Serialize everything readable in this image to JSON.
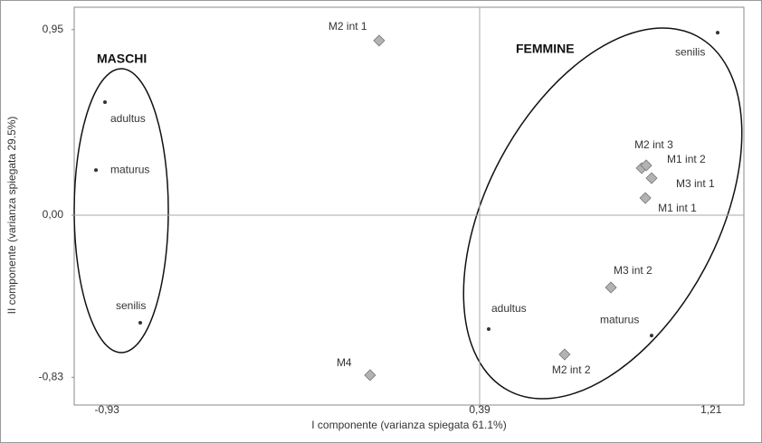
{
  "chart_data": {
    "type": "scatter",
    "x_label": "I componente (varianza spiegata 61.1%)",
    "y_label": "II componente (varianza spiegata 29.5%)",
    "xlim": [
      -1.046,
      1.326
    ],
    "ylim": [
      -0.972,
      1.065
    ],
    "xticks": [
      {
        "value": -0.93,
        "label": "-0,93"
      },
      {
        "value": 0.39,
        "label": "0,39"
      },
      {
        "value": 1.21,
        "label": "1,21"
      }
    ],
    "yticks": [
      {
        "value": -0.83,
        "label": "-0,83"
      },
      {
        "value": 0,
        "label": "0,00"
      },
      {
        "value": 0.95,
        "label": "0,95"
      }
    ],
    "reference_lines": {
      "x": 0.39,
      "y": 0
    },
    "annotations": [
      "MASCHI",
      "FEMMINE"
    ],
    "series": [
      {
        "marker": "dot",
        "color": "#333333",
        "labels": [
          "adultus",
          "maturus",
          "senilis",
          "senilis",
          "adultus",
          "maturus"
        ],
        "x": [
          -0.937,
          -0.969,
          -0.812,
          1.233,
          0.422,
          0.999
        ],
        "values": [
          0.579,
          0.231,
          -0.551,
          0.935,
          -0.583,
          -0.616
        ]
      },
      {
        "marker": "diamond",
        "color": "#b3b3b3",
        "labels": [
          "M2 int 1",
          "M2 int 3",
          "M1 int 2",
          "M3 int 1",
          "M1 int 1",
          "M3 int 2",
          "M2 int 2",
          "M4"
        ],
        "x": [
          0.034,
          0.964,
          0.98,
          0.999,
          0.977,
          0.855,
          0.691,
          0.002
        ],
        "values": [
          0.894,
          0.241,
          0.255,
          0.19,
          0.088,
          -0.37,
          -0.713,
          -0.819
        ]
      }
    ]
  }
}
